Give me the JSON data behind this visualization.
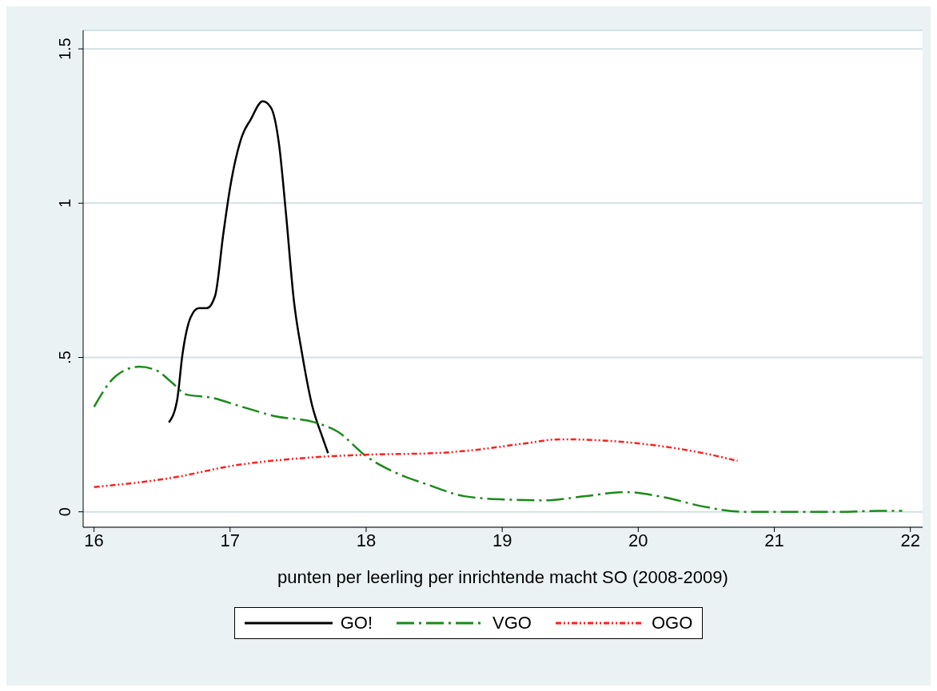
{
  "chart_data": {
    "type": "line",
    "xlabel": "punten per leerling per inrichtende macht SO (2008-2009)",
    "xlim": [
      15.92,
      22.09
    ],
    "xticks": [
      16,
      17,
      18,
      19,
      20,
      21,
      22
    ],
    "ylim": [
      -0.05,
      1.56
    ],
    "yticks": [
      0,
      {
        "value": 0.5,
        "label": ".5"
      },
      1,
      1.5
    ],
    "grid": "y",
    "legend": "bottom",
    "marker": "none",
    "series": [
      {
        "name": "GO!",
        "color": "#000000",
        "line_style": "solid",
        "x": [
          16.55,
          16.61,
          16.65,
          16.71,
          16.77,
          16.83,
          16.89,
          16.95,
          17.0,
          17.09,
          17.15,
          17.24,
          17.3,
          17.36,
          17.41,
          17.47,
          17.53,
          17.6,
          17.68,
          17.72
        ],
        "values": [
          0.29,
          0.36,
          0.51,
          0.63,
          0.66,
          0.66,
          0.7,
          0.9,
          1.05,
          1.22,
          1.27,
          1.33,
          1.31,
          1.19,
          0.97,
          0.68,
          0.51,
          0.35,
          0.24,
          0.19
        ]
      },
      {
        "name": "VGO",
        "color": "#1a8a1a",
        "line_style": "dashed",
        "x": [
          16,
          16.16,
          16.33,
          16.45,
          16.57,
          16.68,
          16.86,
          17.09,
          17.33,
          17.62,
          17.79,
          18.0,
          18.2,
          18.44,
          18.73,
          19.02,
          19.31,
          19.6,
          19.9,
          20.19,
          20.48,
          20.77,
          21.18,
          21.47,
          21.76,
          21.94
        ],
        "values": [
          0.34,
          0.44,
          0.47,
          0.46,
          0.42,
          0.38,
          0.37,
          0.34,
          0.31,
          0.29,
          0.26,
          0.18,
          0.13,
          0.09,
          0.05,
          0.04,
          0.037,
          0.05,
          0.064,
          0.047,
          0.017,
          0.0,
          0.0,
          0.0,
          0.003,
          0.003
        ]
      },
      {
        "name": "OGO",
        "color": "#ff2020",
        "line_style": "dotted",
        "x": [
          16,
          16.57,
          17.03,
          17.56,
          18,
          18.5,
          18.79,
          19.14,
          19.43,
          19.78,
          20.13,
          20.48,
          20.73
        ],
        "values": [
          0.08,
          0.11,
          0.15,
          0.175,
          0.185,
          0.19,
          0.2,
          0.22,
          0.235,
          0.23,
          0.215,
          0.19,
          0.165
        ]
      }
    ]
  }
}
